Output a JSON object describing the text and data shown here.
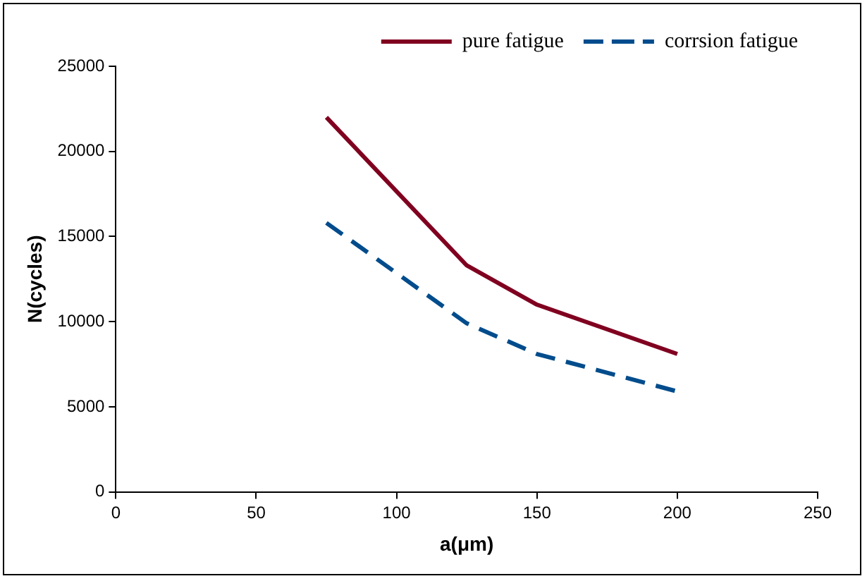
{
  "chart_data": {
    "type": "line",
    "xlabel": "a(μm)",
    "ylabel": "N(cycles)",
    "x": [
      75,
      125,
      150,
      200
    ],
    "series": [
      {
        "name": "pure fatigue",
        "color": "#800020",
        "values": [
          22000,
          13300,
          11000,
          8100
        ],
        "line_style": "solid"
      },
      {
        "name": "corrsion fatigue",
        "color": "#004c8c",
        "values": [
          15800,
          9900,
          8100,
          5900
        ],
        "line_style": "dashed"
      }
    ],
    "xlim": [
      0,
      250
    ],
    "xticks": [
      0,
      50,
      100,
      150,
      200,
      250
    ],
    "ylim": [
      0,
      25000
    ],
    "yticks": [
      0,
      5000,
      10000,
      15000,
      20000,
      25000
    ],
    "grid": false,
    "legend": "top right",
    "marker": "none"
  }
}
